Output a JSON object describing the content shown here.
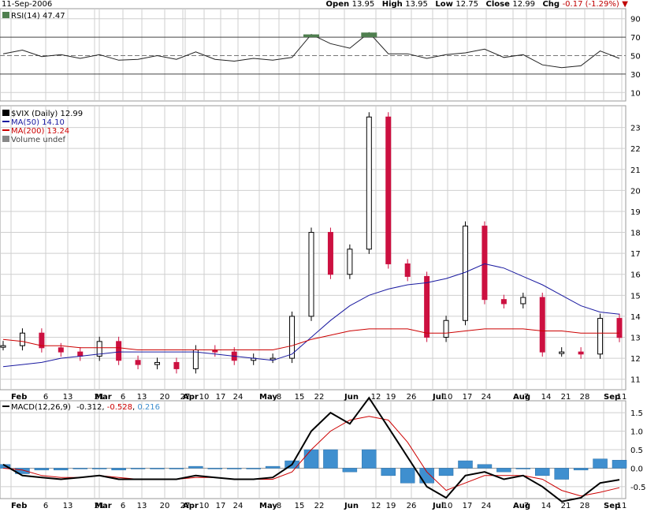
{
  "header": {
    "date": "11-Sep-2006",
    "open_label": "Open",
    "open": "13.95",
    "high_label": "High",
    "high": "13.95",
    "low_label": "Low",
    "low": "12.75",
    "close_label": "Close",
    "close": "12.99",
    "chg_label": "Chg",
    "chg": "-0.17 (-1.29%)"
  },
  "colors": {
    "up_candle": "#000000",
    "down_candle": "#cc1040",
    "ma50": "#1a1aa0",
    "ma200": "#cc0000",
    "rsi_fill": "#4f7f4f",
    "macd_hist": "#3f8fcf",
    "macd_signal": "#cc0000",
    "grid": "#cfcfcf"
  },
  "rsi": {
    "legend": "RSI(14) 47.47",
    "ticks": [
      "90",
      "70",
      "50",
      "30",
      "10"
    ]
  },
  "price": {
    "legend": "$VIX (Daily) 12.99",
    "ma50_legend": "MA(50) 14.10",
    "ma200_legend": "MA(200) 13.24",
    "volume_legend": "Volume undef",
    "ticks": [
      "23",
      "22",
      "21",
      "20",
      "19",
      "18",
      "17",
      "16",
      "15",
      "14",
      "13",
      "12",
      "11"
    ]
  },
  "macd": {
    "legend_prefix": "MACD(12,26,9)",
    "macd_value": "-0.312",
    "signal_value": "-0.528",
    "hist_value": "0.216",
    "ticks": [
      "1.5",
      "1.0",
      "0.5",
      "0.0",
      "-0.5"
    ]
  },
  "x_axis": {
    "labels": [
      "Feb",
      "6",
      "13",
      "21",
      "Mar",
      "6",
      "13",
      "20",
      "27",
      "Apr",
      "10",
      "17",
      "24",
      "May",
      "8",
      "15",
      "22",
      "Jun",
      "12",
      "19",
      "26",
      "Jul",
      "10",
      "17",
      "24",
      "Aug",
      "7",
      "14",
      "21",
      "28",
      "Sep",
      "11"
    ]
  },
  "chart_data": [
    {
      "type": "line",
      "title": "RSI(14)",
      "x": [
        "Jan 30",
        "Feb 6",
        "Feb 13",
        "Feb 21",
        "Feb 27",
        "Mar 6",
        "Mar 13",
        "Mar 20",
        "Mar 27",
        "Apr 3",
        "Apr 10",
        "Apr 17",
        "Apr 24",
        "May 1",
        "May 8",
        "May 15",
        "May 22",
        "May 30",
        "Jun 5",
        "Jun 12",
        "Jun 19",
        "Jun 26",
        "Jul 3",
        "Jul 10",
        "Jul 17",
        "Jul 24",
        "Jul 31",
        "Aug 7",
        "Aug 14",
        "Aug 21",
        "Aug 28",
        "Sep 5",
        "Sep 11"
      ],
      "series": [
        {
          "name": "RSI(14)",
          "values": [
            52,
            56,
            49,
            51,
            47,
            51,
            45,
            46,
            50,
            46,
            54,
            46,
            44,
            47,
            45,
            48,
            73,
            63,
            58,
            75,
            52,
            52,
            47,
            51,
            53,
            57,
            48,
            51,
            40,
            37,
            39,
            55,
            47
          ]
        }
      ],
      "reference_lines": [
        70,
        50,
        30
      ],
      "ylim": [
        0,
        100
      ]
    },
    {
      "type": "candlestick",
      "title": "$VIX (Daily)",
      "x": [
        "Jan 30",
        "Feb 6",
        "Feb 13",
        "Feb 21",
        "Feb 27",
        "Mar 6",
        "Mar 13",
        "Mar 20",
        "Mar 27",
        "Apr 3",
        "Apr 10",
        "Apr 17",
        "Apr 24",
        "May 1",
        "May 8",
        "May 15",
        "May 22",
        "May 30",
        "Jun 5",
        "Jun 12",
        "Jun 19",
        "Jun 26",
        "Jul 3",
        "Jul 10",
        "Jul 17",
        "Jul 24",
        "Jul 31",
        "Aug 7",
        "Aug 14",
        "Aug 21",
        "Aug 28",
        "Sep 5",
        "Sep 11"
      ],
      "series": [
        {
          "name": "Close",
          "values": [
            12.6,
            13.2,
            12.5,
            12.3,
            12.1,
            12.8,
            11.9,
            11.7,
            11.8,
            11.5,
            12.4,
            12.3,
            11.9,
            12.0,
            12.0,
            14.0,
            18.0,
            16.0,
            17.2,
            23.5,
            16.5,
            15.9,
            13.0,
            13.8,
            18.3,
            14.8,
            14.6,
            14.9,
            12.3,
            12.3,
            12.2,
            13.9,
            12.99
          ]
        },
        {
          "name": "MA(50)",
          "values": [
            11.6,
            11.7,
            11.8,
            12.0,
            12.1,
            12.2,
            12.3,
            12.3,
            12.3,
            12.3,
            12.3,
            12.2,
            12.1,
            12.0,
            11.9,
            12.2,
            13.0,
            13.8,
            14.5,
            15.0,
            15.3,
            15.5,
            15.6,
            15.8,
            16.1,
            16.5,
            16.3,
            15.9,
            15.5,
            15.0,
            14.5,
            14.2,
            14.1
          ]
        },
        {
          "name": "MA(200)",
          "values": [
            12.9,
            12.8,
            12.6,
            12.6,
            12.5,
            12.5,
            12.5,
            12.4,
            12.4,
            12.4,
            12.4,
            12.4,
            12.4,
            12.4,
            12.4,
            12.6,
            12.9,
            13.1,
            13.3,
            13.4,
            13.4,
            13.4,
            13.2,
            13.2,
            13.3,
            13.4,
            13.4,
            13.4,
            13.3,
            13.3,
            13.2,
            13.2,
            13.2
          ]
        }
      ],
      "ylim": [
        10.5,
        24
      ]
    },
    {
      "type": "line",
      "title": "MACD(12,26,9)",
      "x": [
        "Jan 30",
        "Feb 6",
        "Feb 13",
        "Feb 21",
        "Feb 27",
        "Mar 6",
        "Mar 13",
        "Mar 20",
        "Mar 27",
        "Apr 3",
        "Apr 10",
        "Apr 17",
        "Apr 24",
        "May 1",
        "May 8",
        "May 15",
        "May 22",
        "May 30",
        "Jun 5",
        "Jun 12",
        "Jun 19",
        "Jun 26",
        "Jul 3",
        "Jul 10",
        "Jul 17",
        "Jul 24",
        "Jul 31",
        "Aug 7",
        "Aug 14",
        "Aug 21",
        "Aug 28",
        "Sep 5",
        "Sep 11"
      ],
      "series": [
        {
          "name": "MACD",
          "values": [
            0.1,
            -0.2,
            -0.25,
            -0.3,
            -0.25,
            -0.2,
            -0.3,
            -0.3,
            -0.3,
            -0.3,
            -0.2,
            -0.25,
            -0.3,
            -0.3,
            -0.25,
            0.1,
            1.0,
            1.5,
            1.2,
            1.9,
            1.1,
            0.3,
            -0.5,
            -0.8,
            -0.2,
            -0.1,
            -0.3,
            -0.2,
            -0.5,
            -0.9,
            -0.8,
            -0.4,
            -0.312
          ]
        },
        {
          "name": "Signal",
          "values": [
            0.0,
            -0.05,
            -0.2,
            -0.25,
            -0.25,
            -0.2,
            -0.25,
            -0.3,
            -0.3,
            -0.3,
            -0.25,
            -0.25,
            -0.3,
            -0.3,
            -0.3,
            -0.1,
            0.5,
            1.0,
            1.3,
            1.4,
            1.3,
            0.7,
            -0.1,
            -0.6,
            -0.4,
            -0.2,
            -0.2,
            -0.2,
            -0.3,
            -0.6,
            -0.75,
            -0.65,
            -0.528
          ]
        },
        {
          "name": "Histogram",
          "values": [
            0.1,
            -0.15,
            -0.05,
            -0.05,
            0.0,
            0.0,
            -0.05,
            0.0,
            0.0,
            0.0,
            0.05,
            0.0,
            0.0,
            0.0,
            0.05,
            0.2,
            0.5,
            0.5,
            -0.1,
            0.5,
            -0.2,
            -0.4,
            -0.4,
            -0.2,
            0.2,
            0.1,
            -0.1,
            0.0,
            -0.2,
            -0.3,
            -0.05,
            0.25,
            0.216
          ]
        }
      ],
      "ylim": [
        -0.8,
        1.8
      ]
    }
  ]
}
